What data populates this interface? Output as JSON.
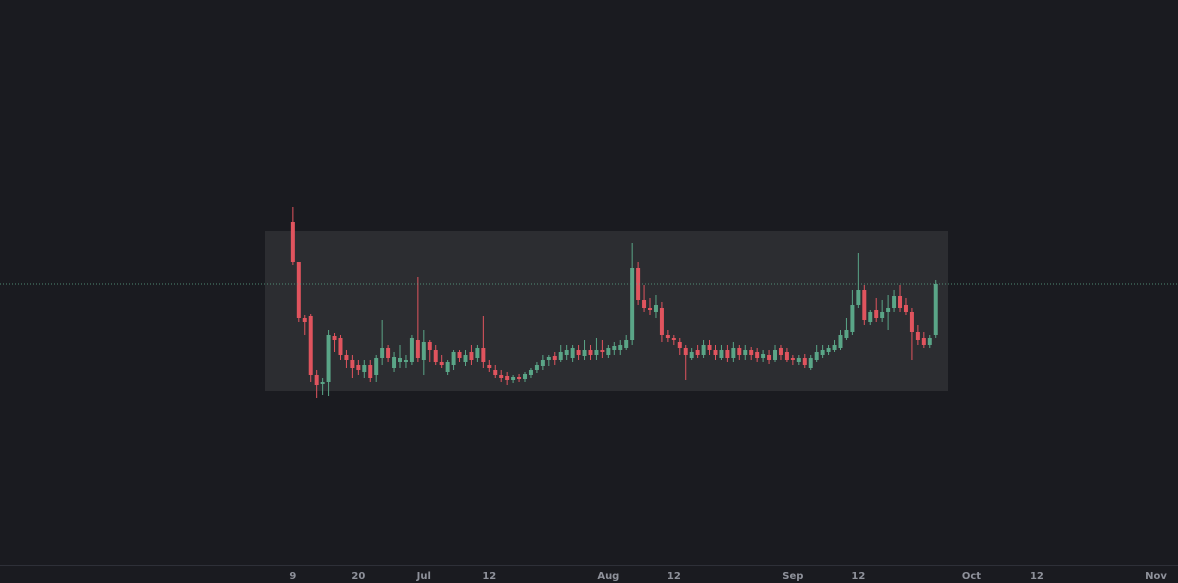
{
  "chart_data": {
    "type": "candlestick",
    "up_color": "#5aa587",
    "down_color": "#e0545e",
    "x": [
      160,
      161,
      162,
      163,
      164,
      165,
      166,
      167,
      168,
      169,
      170,
      171,
      172,
      173,
      174,
      175,
      176,
      177,
      178,
      179,
      180,
      181,
      182,
      183,
      184,
      185,
      186,
      187,
      188,
      189,
      190,
      191,
      192,
      193,
      194,
      195,
      196,
      197,
      198,
      199,
      200,
      201,
      202,
      203,
      204,
      205,
      206,
      207,
      208,
      209,
      210,
      211,
      212,
      213,
      214,
      215,
      216,
      217,
      218,
      219,
      220,
      221,
      222,
      223,
      224,
      225,
      226,
      227,
      228,
      229,
      230,
      231,
      232,
      233,
      234,
      235,
      236,
      237,
      238,
      239,
      240,
      241,
      242,
      243,
      244,
      245,
      246,
      247,
      248,
      249,
      250,
      251,
      252,
      253,
      254,
      255,
      256,
      257,
      258,
      259,
      260,
      261,
      262,
      263,
      264,
      265,
      266,
      267,
      268
    ],
    "open": [
      178,
      138,
      82,
      84,
      25,
      16,
      18,
      64,
      62,
      45,
      40,
      35,
      28,
      35,
      25,
      42,
      52,
      32,
      38,
      38,
      38,
      60,
      40,
      58,
      50,
      38,
      28,
      35,
      48,
      38,
      48,
      42,
      52,
      35,
      30,
      25,
      24,
      20,
      23,
      21,
      25,
      30,
      34,
      40,
      44,
      40,
      45,
      42,
      50,
      44,
      50,
      45,
      50,
      45,
      50,
      50,
      52,
      60,
      132,
      100,
      92,
      88,
      92,
      65,
      62,
      58,
      52,
      42,
      50,
      45,
      55,
      50,
      42,
      50,
      42,
      52,
      45,
      50,
      48,
      42,
      45,
      40,
      52,
      48,
      42,
      38,
      42,
      32,
      40,
      45,
      48,
      50,
      52,
      62,
      68,
      95,
      110,
      78,
      90,
      82,
      88,
      92,
      104,
      95,
      88,
      68,
      62,
      55,
      65
    ],
    "high": [
      193,
      138,
      85,
      86,
      30,
      22,
      70,
      67,
      65,
      50,
      45,
      40,
      40,
      40,
      45,
      80,
      55,
      48,
      55,
      45,
      65,
      123,
      70,
      60,
      55,
      45,
      40,
      50,
      50,
      50,
      55,
      55,
      84,
      40,
      35,
      30,
      28,
      25,
      26,
      28,
      32,
      38,
      45,
      45,
      48,
      55,
      55,
      55,
      55,
      60,
      55,
      62,
      60,
      55,
      58,
      60,
      65,
      157,
      138,
      115,
      102,
      105,
      98,
      70,
      65,
      62,
      55,
      52,
      55,
      60,
      60,
      55,
      55,
      55,
      58,
      55,
      55,
      53,
      52,
      50,
      50,
      55,
      55,
      52,
      45,
      45,
      46,
      45,
      55,
      55,
      55,
      60,
      70,
      82,
      110,
      147,
      115,
      90,
      102,
      100,
      105,
      110,
      115,
      102,
      92,
      75,
      68,
      65,
      120
    ],
    "low": [
      135,
      78,
      65,
      18,
      2,
      5,
      4,
      48,
      40,
      32,
      22,
      25,
      22,
      18,
      18,
      35,
      38,
      28,
      32,
      32,
      35,
      38,
      25,
      38,
      35,
      32,
      25,
      30,
      38,
      34,
      35,
      38,
      32,
      28,
      22,
      18,
      15,
      17,
      18,
      18,
      22,
      27,
      30,
      34,
      35,
      38,
      40,
      38,
      40,
      40,
      40,
      40,
      42,
      42,
      45,
      45,
      50,
      55,
      95,
      88,
      85,
      82,
      58,
      58,
      55,
      45,
      20,
      40,
      42,
      42,
      45,
      40,
      40,
      38,
      38,
      40,
      40,
      40,
      38,
      38,
      36,
      38,
      40,
      38,
      35,
      35,
      32,
      30,
      38,
      42,
      45,
      48,
      50,
      60,
      65,
      92,
      75,
      75,
      78,
      78,
      70,
      88,
      88,
      85,
      40,
      55,
      52,
      52,
      62
    ],
    "close": [
      138,
      82,
      78,
      25,
      15,
      18,
      65,
      60,
      45,
      40,
      32,
      30,
      35,
      22,
      42,
      52,
      42,
      43,
      42,
      40,
      62,
      42,
      58,
      50,
      38,
      35,
      38,
      48,
      42,
      45,
      40,
      52,
      38,
      32,
      25,
      22,
      20,
      23,
      21,
      26,
      30,
      35,
      40,
      43,
      40,
      48,
      50,
      52,
      45,
      50,
      45,
      50,
      48,
      52,
      54,
      55,
      60,
      132,
      100,
      92,
      90,
      95,
      65,
      62,
      60,
      52,
      45,
      48,
      45,
      55,
      50,
      45,
      50,
      42,
      52,
      45,
      50,
      45,
      42,
      46,
      40,
      50,
      45,
      40,
      40,
      42,
      35,
      42,
      48,
      50,
      52,
      55,
      65,
      70,
      95,
      110,
      80,
      88,
      82,
      88,
      92,
      104,
      92,
      88,
      68,
      60,
      55,
      62,
      116
    ],
    "xlim": [
      110.8,
      308.7
    ],
    "ylim": [
      -165,
      400
    ],
    "xticks": [
      {
        "value": 160,
        "label": "9"
      },
      {
        "value": 171,
        "label": "20"
      },
      {
        "value": 182,
        "label": "Jul"
      },
      {
        "value": 193,
        "label": "12"
      },
      {
        "value": 213,
        "label": "Aug"
      },
      {
        "value": 224,
        "label": "12"
      },
      {
        "value": 244,
        "label": "Sep"
      },
      {
        "value": 255,
        "label": "12"
      },
      {
        "value": 274,
        "label": "Oct"
      },
      {
        "value": 285,
        "label": "12"
      },
      {
        "value": 305,
        "label": "Nov"
      }
    ]
  }
}
